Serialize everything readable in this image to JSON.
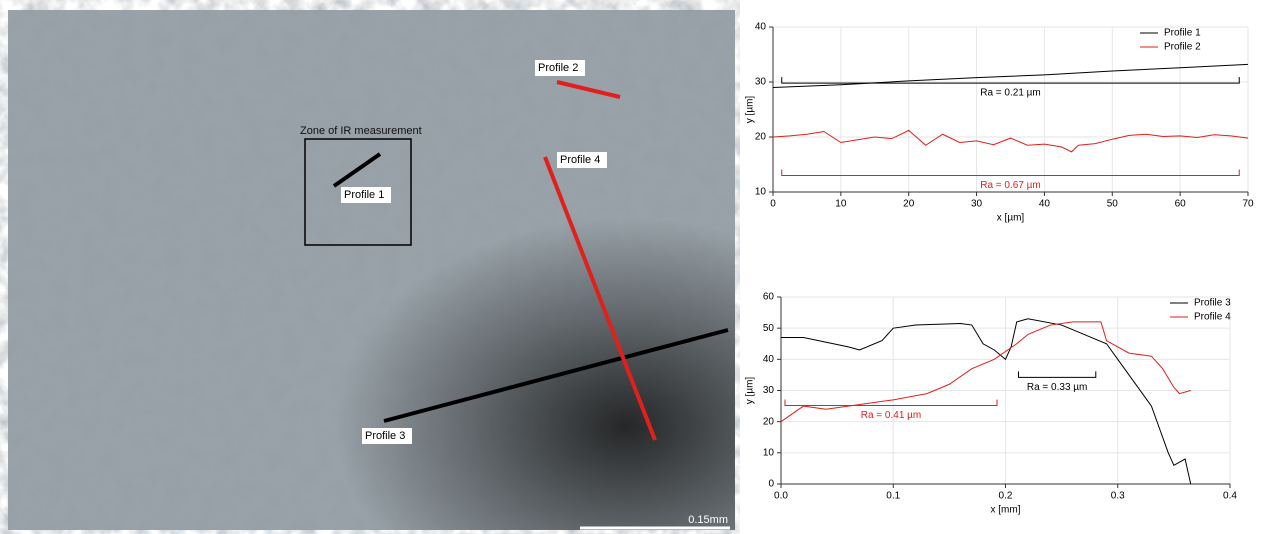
{
  "image": {
    "zone_label": "Zone of IR measurement",
    "profile_labels": [
      "Profile 1",
      "Profile 2",
      "Profile 3",
      "Profile 4"
    ],
    "scale_label": "0.15mm"
  },
  "chart_data": [
    {
      "type": "line",
      "x_label": "x [µm]",
      "y_label": "y [µm]",
      "xlim": [
        0,
        70
      ],
      "ylim": [
        10,
        40
      ],
      "xticks": [
        0,
        10,
        20,
        30,
        40,
        50,
        60,
        70
      ],
      "yticks": [
        10,
        20,
        30,
        40
      ],
      "grid": true,
      "series": [
        {
          "name": "Profile 1",
          "color": "#000000",
          "x": [
            0,
            10,
            20,
            30,
            40,
            50,
            60,
            70
          ],
          "values": [
            29,
            29.5,
            30.2,
            30.8,
            31.3,
            32,
            32.6,
            33.2
          ]
        },
        {
          "name": "Profile 2",
          "color": "#e0201c",
          "x": [
            0,
            2.5,
            5,
            7.5,
            10,
            12.5,
            15,
            17.5,
            20,
            22.5,
            25,
            27.5,
            30,
            32.5,
            35,
            37.5,
            40,
            42.5,
            44,
            45,
            47.5,
            50,
            52.5,
            55,
            57.5,
            60,
            62.5,
            65,
            67.5,
            70
          ],
          "values": [
            20,
            20.2,
            20.5,
            21,
            19,
            19.5,
            20,
            19.7,
            21.2,
            18.5,
            20.5,
            19,
            19.3,
            18.6,
            19.8,
            18.5,
            18.7,
            18.2,
            17.3,
            18.5,
            18.8,
            19.6,
            20.3,
            20.5,
            20.1,
            20.2,
            19.9,
            20.4,
            20.2,
            19.8
          ]
        }
      ],
      "annotations": [
        {
          "text": "Ra = 0.21 µm",
          "color": "#000000"
        },
        {
          "text": "Ra = 0.67 µm",
          "color": "#e0201c"
        }
      ]
    },
    {
      "type": "line",
      "x_label": "x [mm]",
      "y_label": "y [µm]",
      "xlim": [
        0,
        0.4
      ],
      "ylim": [
        0,
        60
      ],
      "xticks": [
        {
          "value": 0,
          "label": "0.0"
        },
        0.1,
        0.2,
        0.3,
        0.4
      ],
      "yticks": [
        0,
        10,
        20,
        30,
        40,
        50,
        60
      ],
      "grid": true,
      "series": [
        {
          "name": "Profile 3",
          "color": "#000000",
          "x": [
            0,
            0.02,
            0.06,
            0.07,
            0.09,
            0.1,
            0.12,
            0.16,
            0.17,
            0.18,
            0.19,
            0.2,
            0.205,
            0.21,
            0.22,
            0.25,
            0.27,
            0.29,
            0.3,
            0.31,
            0.33,
            0.34,
            0.345,
            0.35,
            0.36,
            0.365
          ],
          "values": [
            47,
            47,
            44,
            43,
            46,
            50,
            51,
            51.5,
            51,
            45,
            43,
            40,
            44,
            52,
            53,
            51,
            48,
            45,
            40,
            35,
            25,
            15,
            10,
            6,
            8,
            0
          ]
        },
        {
          "name": "Profile 4",
          "color": "#e0201c",
          "x": [
            0,
            0.02,
            0.04,
            0.06,
            0.1,
            0.13,
            0.15,
            0.17,
            0.19,
            0.21,
            0.22,
            0.24,
            0.26,
            0.285,
            0.29,
            0.31,
            0.33,
            0.34,
            0.35,
            0.355,
            0.365
          ],
          "values": [
            20,
            25,
            24,
            25,
            27,
            29,
            32,
            37,
            40,
            45,
            48,
            51,
            52,
            52,
            46,
            42,
            41,
            37,
            31,
            29,
            30
          ]
        }
      ],
      "annotations": [
        {
          "text": "Ra = 0.33 µm",
          "color": "#000000"
        },
        {
          "text": "Ra = 0.41 µm",
          "color": "#e0201c"
        }
      ]
    }
  ]
}
